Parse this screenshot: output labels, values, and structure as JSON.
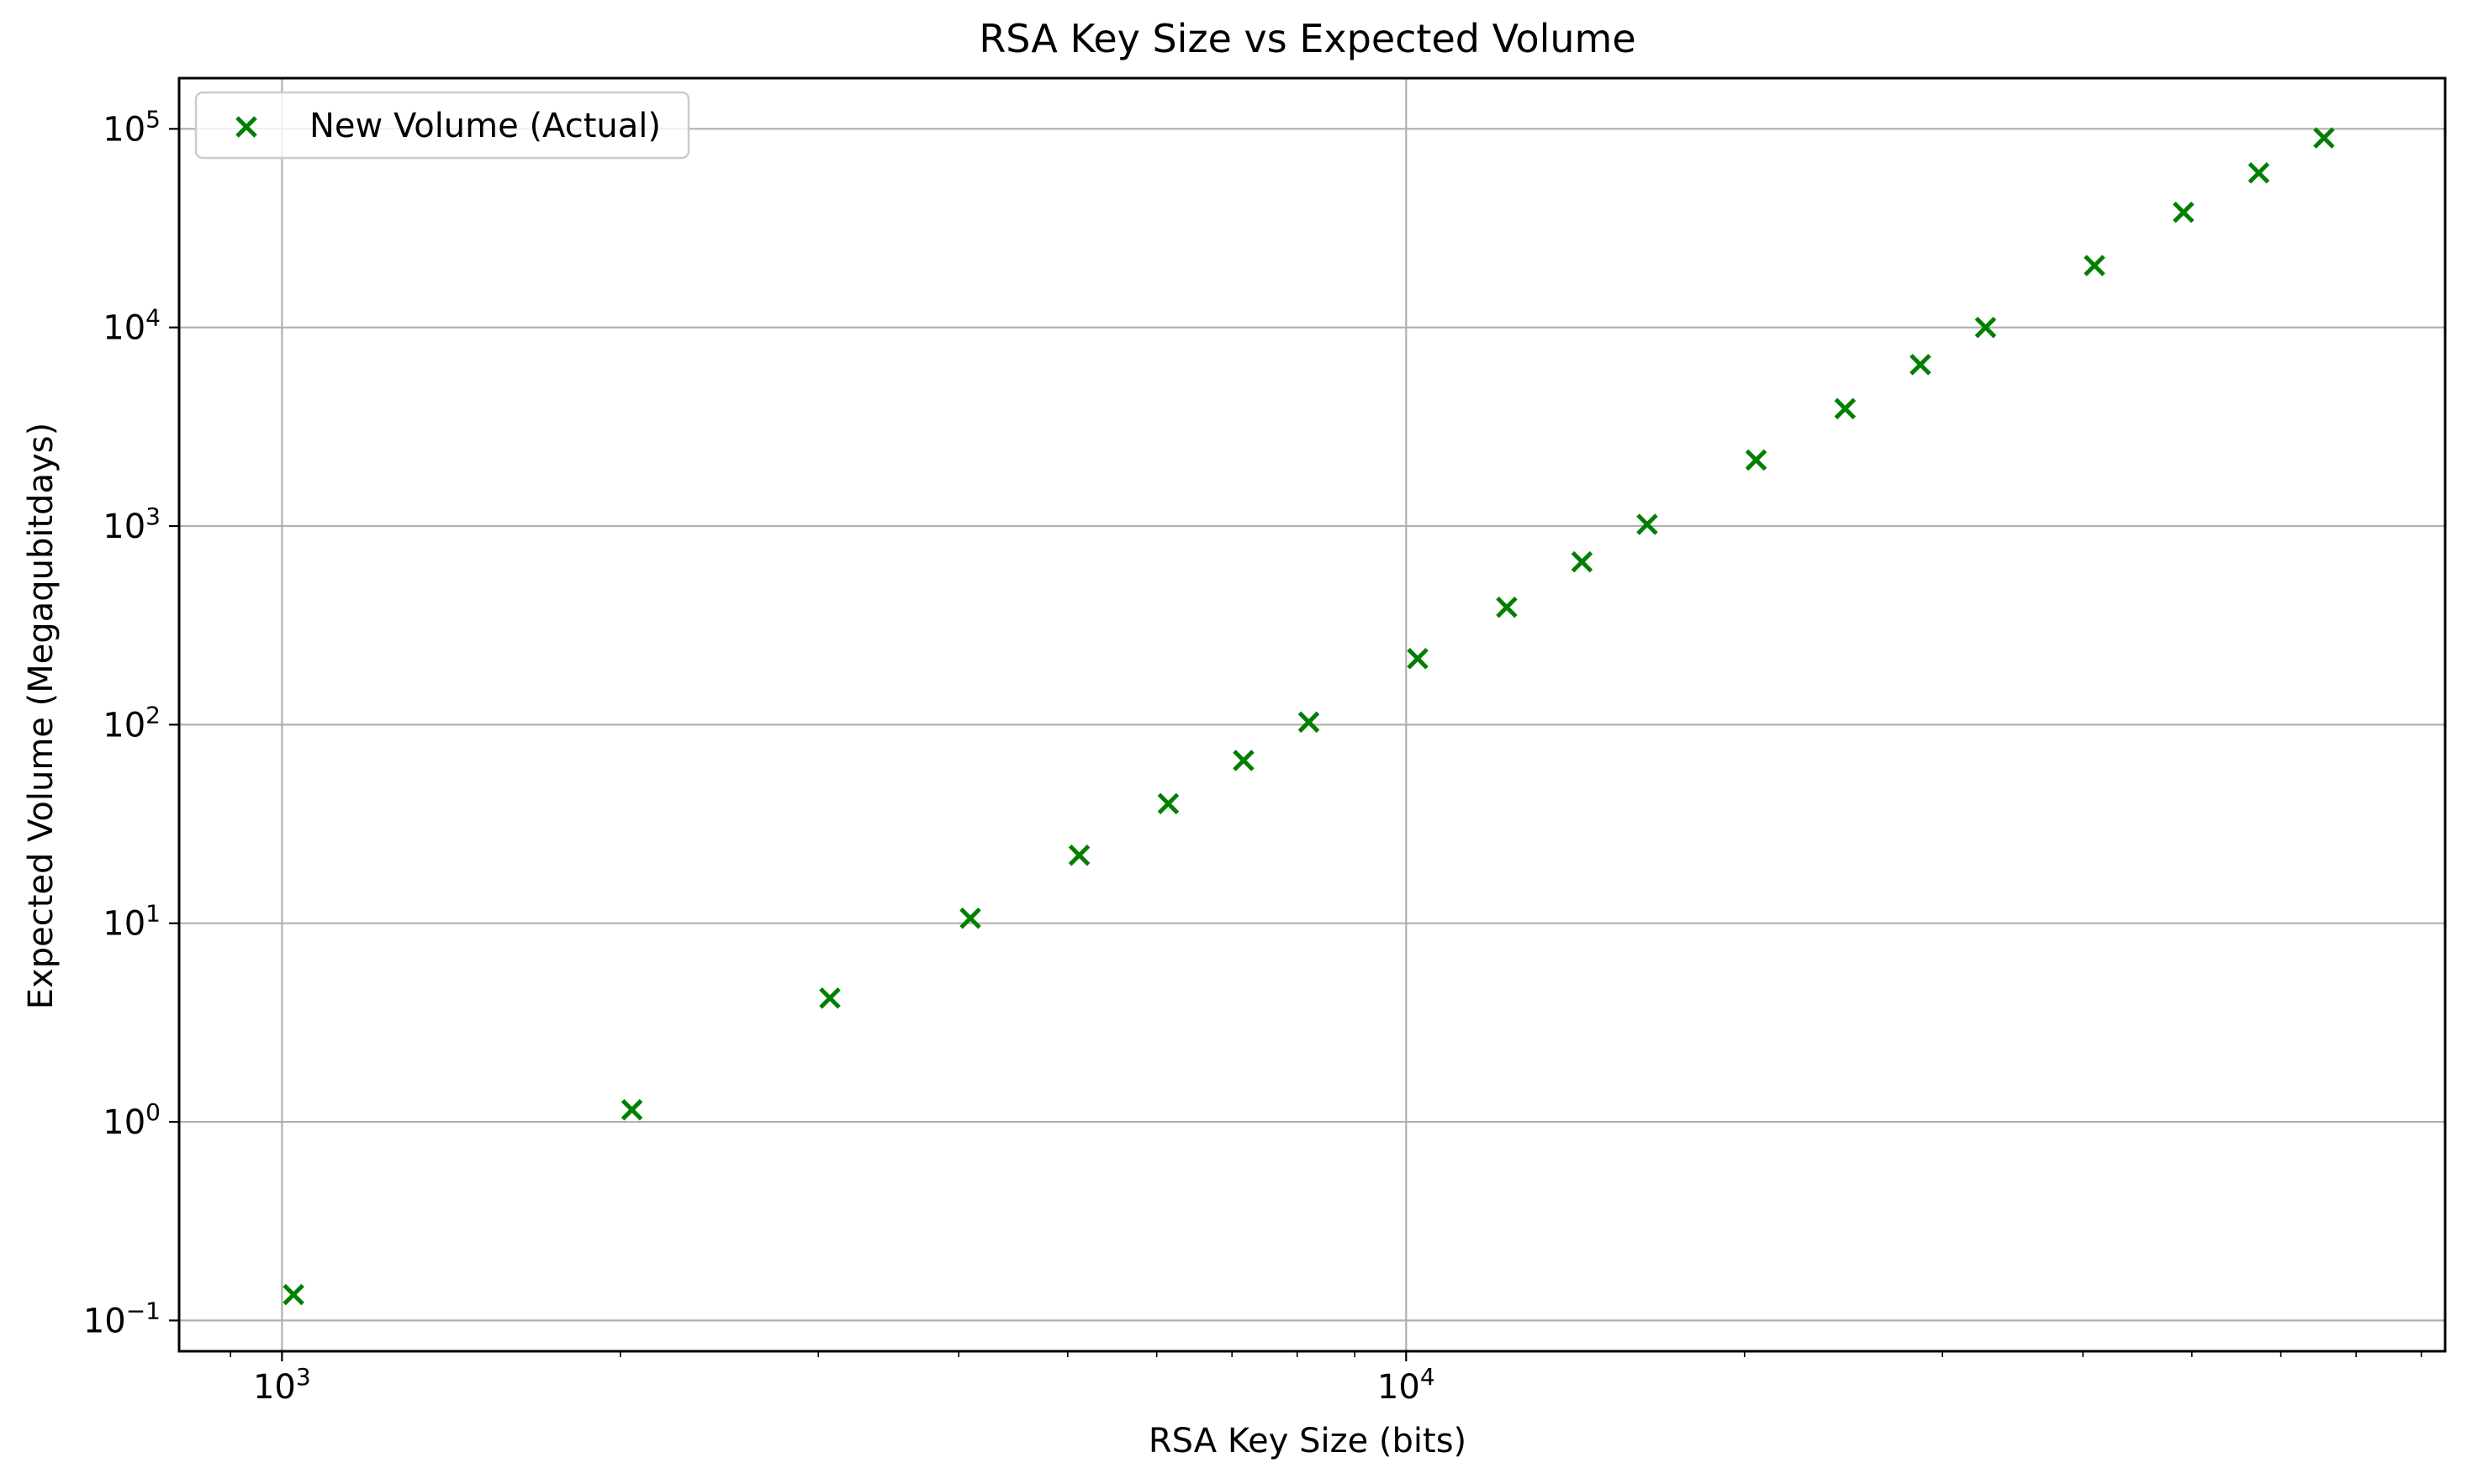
{
  "chart_data": {
    "type": "scatter",
    "title": "RSA Key Size vs Expected Volume",
    "xlabel": "RSA Key Size (bits)",
    "ylabel": "Expected Volume (Megaqubitdays)",
    "xscale": "log",
    "yscale": "log",
    "xlim": [
      810,
      84000
    ],
    "ylim": [
      0.07,
      180000
    ],
    "grid": true,
    "legend": {
      "position": "top-left"
    },
    "x_ticks": [
      {
        "value": 1000,
        "base": "10",
        "exp": "3"
      },
      {
        "value": 10000,
        "base": "10",
        "exp": "4"
      }
    ],
    "y_ticks": [
      {
        "value": 0.1,
        "base": "10",
        "exp": "−1"
      },
      {
        "value": 1,
        "base": "10",
        "exp": "0"
      },
      {
        "value": 10,
        "base": "10",
        "exp": "1"
      },
      {
        "value": 100,
        "base": "10",
        "exp": "2"
      },
      {
        "value": 1000,
        "base": "10",
        "exp": "3"
      },
      {
        "value": 10000,
        "base": "10",
        "exp": "4"
      },
      {
        "value": 100000,
        "base": "10",
        "exp": "5"
      }
    ],
    "series": [
      {
        "name": "New Volume (Actual)",
        "color": "#008000",
        "marker": "x",
        "x": [
          1024,
          2048,
          3072,
          4096,
          5120,
          6144,
          7168,
          8192,
          10240,
          12288,
          14336,
          16384,
          20480,
          24576,
          28672,
          32768,
          40960,
          49152,
          57344,
          65536
        ],
        "y": [
          0.135,
          1.15,
          4.2,
          10.6,
          22,
          40,
          66,
          103,
          215,
          390,
          660,
          1020,
          2150,
          3900,
          6500,
          10000,
          20500,
          38000,
          60000,
          90000
        ]
      }
    ]
  }
}
